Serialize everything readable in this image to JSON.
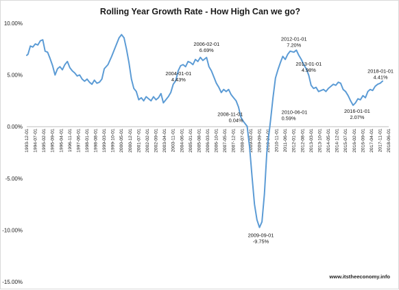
{
  "chart_data": {
    "type": "line",
    "title": "Rolling Year Growth Rate - How High Can we go?",
    "xlabel": "",
    "ylabel": "",
    "ylim": [
      -15,
      10
    ],
    "y_ticks": [
      10,
      5,
      0,
      -5,
      -10,
      -15
    ],
    "y_tick_labels": [
      "10.00%",
      "5.00%",
      "0.00%",
      "-5.00%",
      "-10.00%",
      "-15.00%"
    ],
    "x_range": [
      "1993-12-01",
      "2018-06-01"
    ],
    "x_tick_labels": [
      "1993-12-01",
      "1994-07-01",
      "1995-02-01",
      "1995-09-01",
      "1996-04-01",
      "1996-11-01",
      "1997-06-01",
      "1998-01-01",
      "1998-08-01",
      "1999-03-01",
      "1999-10-01",
      "2000-05-01",
      "2000-12-01",
      "2001-07-01",
      "2002-02-01",
      "2002-09-01",
      "2003-04-01",
      "2003-11-01",
      "2004-06-01",
      "2005-01-01",
      "2005-08-01",
      "2006-03-01",
      "2006-10-01",
      "2007-05-01",
      "2007-12-01",
      "2008-07-01",
      "2009-02-01",
      "2009-09-01",
      "2010-04-01",
      "2010-11-01",
      "2011-06-01",
      "2012-01-01",
      "2012-08-01",
      "2013-03-01",
      "2013-10-01",
      "2014-05-01",
      "2014-12-01",
      "2015-07-01",
      "2016-02-01",
      "2016-09-01",
      "2017-04-01",
      "2017-11-01",
      "2018-06-01"
    ],
    "grid": false,
    "legend": "none",
    "line_color": "#5b9bd5",
    "series": [
      {
        "x": [
          "1993-12-01",
          "1994-01-01",
          "1994-03-01",
          "1994-05-01",
          "1994-07-01",
          "1994-09-01",
          "1994-11-01",
          "1995-01-01",
          "1995-03-01",
          "1995-05-01",
          "1995-07-01",
          "1995-09-01",
          "1995-11-01",
          "1996-01-01",
          "1996-03-01",
          "1996-05-01",
          "1996-07-01",
          "1996-09-01",
          "1996-11-01",
          "1997-01-01",
          "1997-03-01",
          "1997-05-01",
          "1997-07-01",
          "1997-09-01",
          "1997-11-01",
          "1998-01-01",
          "1998-03-01",
          "1998-05-01",
          "1998-07-01",
          "1998-09-01",
          "1998-11-01",
          "1999-01-01",
          "1999-03-01",
          "1999-06-01",
          "1999-09-01",
          "1999-12-01",
          "2000-03-01",
          "2000-05-01",
          "2000-07-01",
          "2000-09-01",
          "2000-11-01",
          "2001-01-01",
          "2001-03-01",
          "2001-05-01",
          "2001-07-01",
          "2001-09-01",
          "2001-11-01",
          "2002-01-01",
          "2002-03-01",
          "2002-05-01",
          "2002-07-01",
          "2002-09-01",
          "2002-11-01",
          "2003-01-01",
          "2003-03-01",
          "2003-05-01",
          "2003-07-01",
          "2003-09-01",
          "2003-11-01",
          "2004-01-01",
          "2004-03-01",
          "2004-05-01",
          "2004-07-01",
          "2004-09-01",
          "2004-11-01",
          "2005-01-01",
          "2005-03-01",
          "2005-05-01",
          "2005-07-01",
          "2005-09-01",
          "2005-11-01",
          "2006-02-01",
          "2006-04-01",
          "2006-06-01",
          "2006-08-01",
          "2006-10-01",
          "2006-12-01",
          "2007-02-01",
          "2007-04-01",
          "2007-06-01",
          "2007-08-01",
          "2007-10-01",
          "2007-12-01",
          "2008-02-01",
          "2008-04-01",
          "2008-06-01",
          "2008-08-01",
          "2008-11-01",
          "2009-01-01",
          "2009-03-01",
          "2009-05-01",
          "2009-07-01",
          "2009-09-01",
          "2009-11-01",
          "2010-01-01",
          "2010-03-01",
          "2010-06-01",
          "2010-08-01",
          "2010-10-01",
          "2010-12-01",
          "2011-02-01",
          "2011-04-01",
          "2011-06-01",
          "2011-08-01",
          "2011-10-01",
          "2012-01-01",
          "2012-03-01",
          "2012-05-01",
          "2012-07-01",
          "2012-09-01",
          "2012-11-01",
          "2013-01-01",
          "2013-03-01",
          "2013-05-01",
          "2013-07-01",
          "2013-09-01",
          "2013-11-01",
          "2014-01-01",
          "2014-03-01",
          "2014-05-01",
          "2014-07-01",
          "2014-09-01",
          "2014-11-01",
          "2015-01-01",
          "2015-03-01",
          "2015-05-01",
          "2015-07-01",
          "2015-09-01",
          "2015-11-01",
          "2016-01-01",
          "2016-03-01",
          "2016-05-01",
          "2016-07-01",
          "2016-09-01",
          "2016-11-01",
          "2017-01-01",
          "2017-03-01",
          "2017-05-01",
          "2017-07-01",
          "2017-09-01",
          "2017-11-01",
          "2018-01-01"
        ],
        "y": [
          6.9,
          7.0,
          7.8,
          7.7,
          8.0,
          7.9,
          8.3,
          8.4,
          7.3,
          7.2,
          6.6,
          5.9,
          5.0,
          5.6,
          5.8,
          5.5,
          6.0,
          6.3,
          5.7,
          5.4,
          5.2,
          4.9,
          5.0,
          4.6,
          4.4,
          4.6,
          4.3,
          4.1,
          4.5,
          4.2,
          4.3,
          4.6,
          5.6,
          6.0,
          6.8,
          7.7,
          8.6,
          8.9,
          8.6,
          7.5,
          6.2,
          4.6,
          3.7,
          3.4,
          2.6,
          2.8,
          2.5,
          2.9,
          2.7,
          2.5,
          2.9,
          2.6,
          2.8,
          3.2,
          2.3,
          2.6,
          2.9,
          3.3,
          4.1,
          4.43,
          5.4,
          5.9,
          6.0,
          5.8,
          6.3,
          6.2,
          6.0,
          6.5,
          6.3,
          6.7,
          6.4,
          6.69,
          5.8,
          5.4,
          4.8,
          4.2,
          3.8,
          3.3,
          3.6,
          3.4,
          3.6,
          3.1,
          2.8,
          2.5,
          1.9,
          0.9,
          0.5,
          0.04,
          -2.0,
          -4.8,
          -7.5,
          -9.0,
          -9.75,
          -9.2,
          -6.5,
          -2.5,
          0.59,
          2.8,
          4.7,
          5.5,
          6.2,
          6.8,
          6.5,
          7.0,
          7.3,
          7.2,
          7.4,
          6.9,
          6.5,
          6.0,
          5.6,
          4.98,
          4.0,
          3.7,
          3.8,
          3.4,
          3.5,
          3.6,
          3.4,
          3.7,
          3.9,
          4.1,
          4.0,
          4.3,
          4.2,
          3.6,
          3.4,
          3.0,
          2.5,
          2.07,
          2.3,
          2.7,
          2.6,
          3.0,
          2.8,
          3.4,
          3.6,
          3.5,
          3.9,
          4.1,
          4.2,
          4.41
        ]
      }
    ],
    "annotations": [
      {
        "date": "2004-01-01",
        "value": 4.43,
        "date_label": "2004-01-01",
        "value_label": "4.43%",
        "place": "below"
      },
      {
        "date": "2006-02-01",
        "value": 6.69,
        "date_label": "2006-02-01",
        "value_label": "6.69%",
        "place": "above"
      },
      {
        "date": "2008-11-01",
        "value": 0.04,
        "date_label": "2008-11-01",
        "value_label": "0.04%",
        "place": "left"
      },
      {
        "date": "2009-09-01",
        "value": -9.75,
        "date_label": "2009-09-01",
        "value_label": "-9.75%",
        "place": "below"
      },
      {
        "date": "2010-06-01",
        "value": 0.59,
        "date_label": "2010-06-01",
        "value_label": "0.59%",
        "place": "right"
      },
      {
        "date": "2012-01-01",
        "value": 7.2,
        "date_label": "2012-01-01",
        "value_label": "7.20%",
        "place": "above"
      },
      {
        "date": "2013-01-01",
        "value": 4.98,
        "date_label": "2013-01-01",
        "value_label": "4.98%",
        "place": "above"
      },
      {
        "date": "2016-01-01",
        "value": 2.07,
        "date_label": "2016-01-01",
        "value_label": "2.07%",
        "place": "below"
      },
      {
        "date": "2018-01-01",
        "value": 4.41,
        "date_label": "2018-01-01",
        "value_label": "4.41%",
        "place": "above"
      }
    ],
    "source": "www.itstheeconomy.info"
  }
}
